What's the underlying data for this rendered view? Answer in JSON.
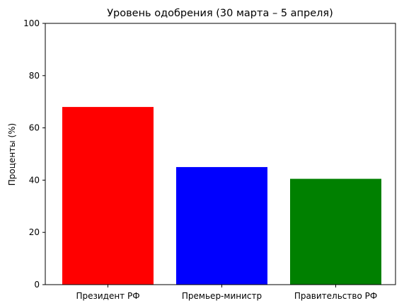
{
  "chart_data": {
    "type": "bar",
    "title": "Уровень одобрения (30 марта – 5 апреля)",
    "xlabel": "",
    "ylabel": "Проценты (%)",
    "ylim": [
      0,
      100
    ],
    "yticks": [
      0,
      20,
      40,
      60,
      80,
      100
    ],
    "categories": [
      "Президент РФ",
      "Премьер-министр",
      "Правительство РФ"
    ],
    "values": [
      68,
      45,
      40.5
    ],
    "colors": [
      "#ff0000",
      "#0000ff",
      "#008000"
    ],
    "grid": false,
    "legend": "none"
  }
}
